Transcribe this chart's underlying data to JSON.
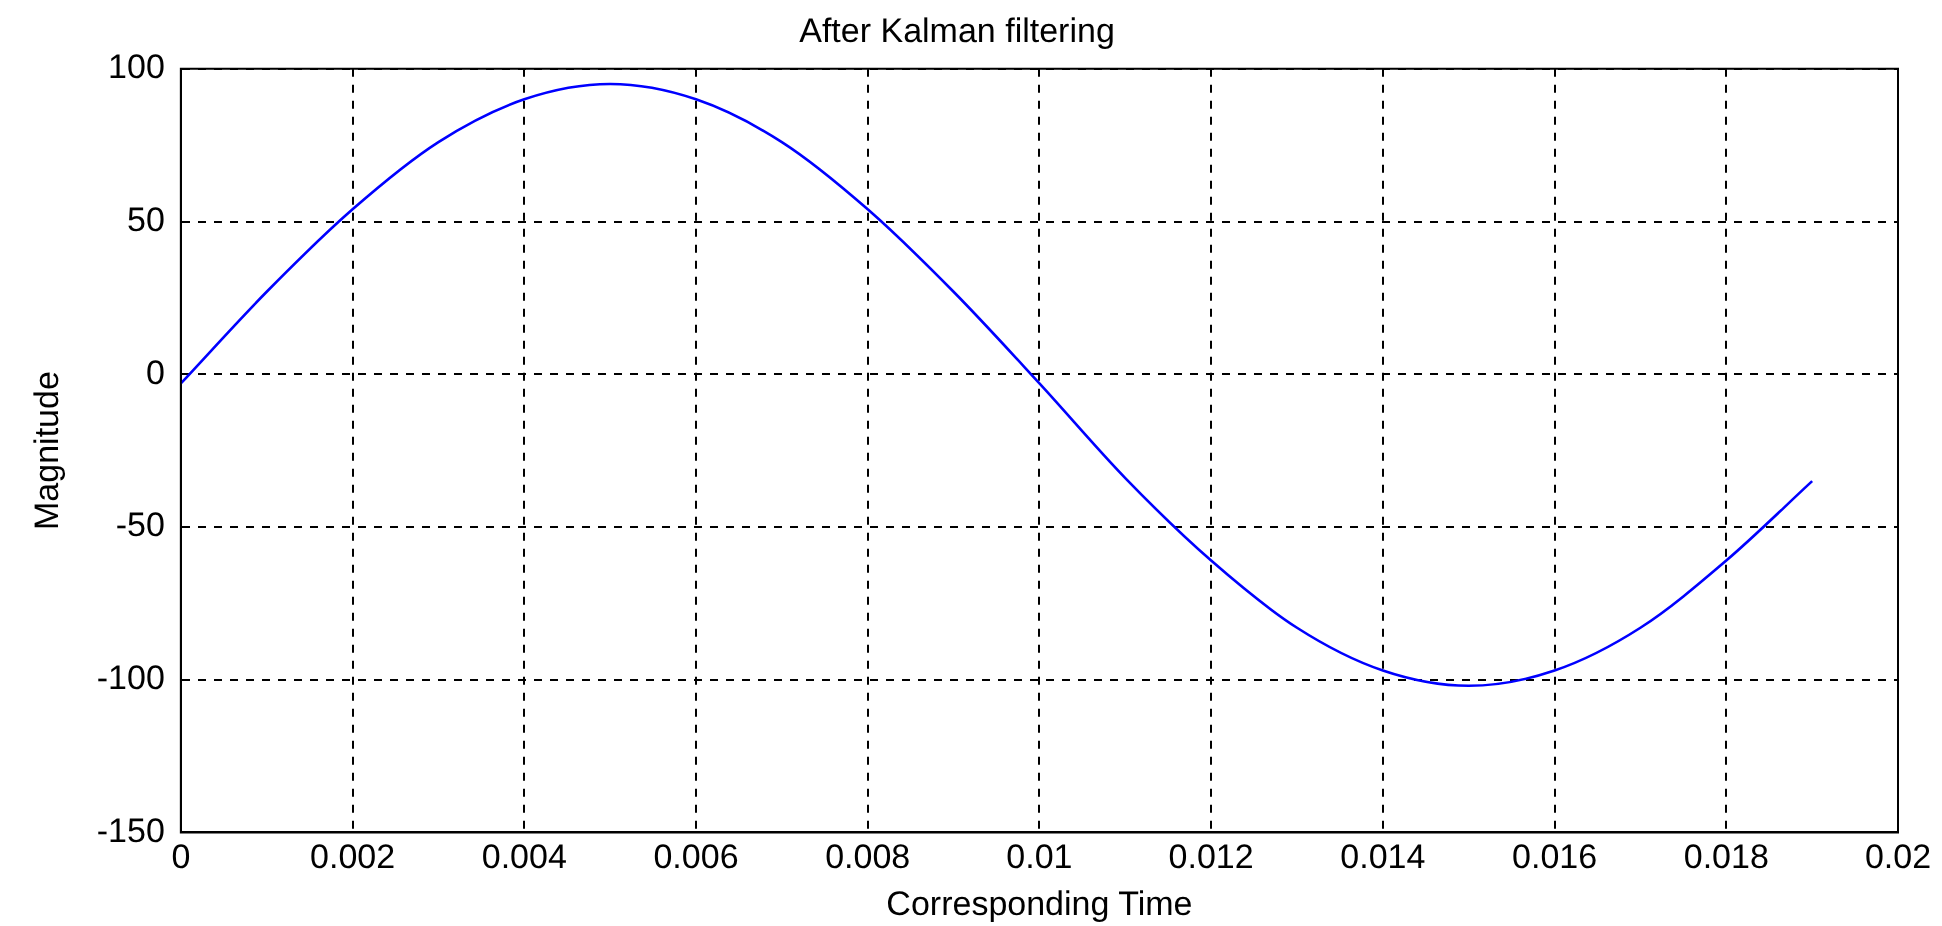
{
  "chart_data": {
    "type": "line",
    "title": "After Kalman filtering",
    "xlabel": "Corresponding Time",
    "ylabel": "Magnitude",
    "x": [
      0,
      0.001,
      0.002,
      0.003,
      0.004,
      0.005,
      0.006,
      0.007,
      0.008,
      0.009,
      0.01,
      0.011,
      0.012,
      0.013,
      0.014,
      0.015,
      0.016,
      0.017,
      0.018,
      0.019
    ],
    "series": [
      {
        "color": "#0000ff",
        "values": [
          -3,
          27,
          54,
          76,
          90,
          95,
          90,
          76,
          54,
          27,
          -3,
          -34,
          -61,
          -83,
          -97,
          -102,
          -97,
          -83,
          -61,
          -35
        ]
      }
    ],
    "xlim": [
      0,
      0.02
    ],
    "xticks": [
      0,
      0.002,
      0.004,
      0.006,
      0.008,
      0.01,
      0.012,
      0.014,
      0.016,
      0.018,
      0.02
    ],
    "ylim": [
      -150,
      100
    ],
    "yticks": [
      -150,
      -100,
      -50,
      0,
      50,
      100
    ],
    "grid": true,
    "legend": false,
    "marker": "none",
    "line_style": "solid"
  }
}
